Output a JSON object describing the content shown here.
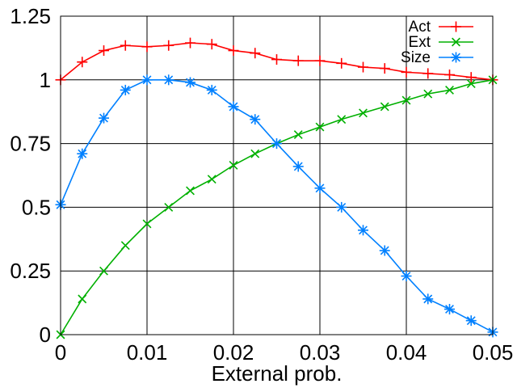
{
  "chart_data": {
    "type": "line",
    "xlabel": "External prob.",
    "ylabel": "",
    "xlim": [
      0,
      0.05
    ],
    "ylim": [
      0,
      1.25
    ],
    "x_ticks": [
      0,
      0.01,
      0.02,
      0.03,
      0.04,
      0.05
    ],
    "x_tick_labels": [
      "0",
      "0.01",
      "0.02",
      "0.03",
      "0.04",
      "0.05"
    ],
    "y_ticks": [
      0,
      0.25,
      0.5,
      0.75,
      1,
      1.25
    ],
    "y_tick_labels": [
      "0",
      "0.25",
      "0.5",
      "0.75",
      "1",
      "1.25"
    ],
    "grid": true,
    "legend_position": "top-right",
    "x": [
      0,
      0.0025,
      0.005,
      0.0075,
      0.01,
      0.0125,
      0.015,
      0.0175,
      0.02,
      0.0225,
      0.025,
      0.0275,
      0.03,
      0.0325,
      0.035,
      0.0375,
      0.04,
      0.0425,
      0.045,
      0.0475,
      0.05
    ],
    "series": [
      {
        "name": "Act",
        "color": "#ff0000",
        "marker": "plus",
        "values": [
          1.0,
          1.07,
          1.115,
          1.135,
          1.13,
          1.135,
          1.145,
          1.14,
          1.115,
          1.105,
          1.08,
          1.075,
          1.075,
          1.065,
          1.05,
          1.045,
          1.03,
          1.025,
          1.02,
          1.01,
          1.0
        ]
      },
      {
        "name": "Ext",
        "color": "#00b000",
        "marker": "cross",
        "values": [
          0.0,
          0.14,
          0.25,
          0.35,
          0.435,
          0.5,
          0.565,
          0.61,
          0.665,
          0.71,
          0.75,
          0.785,
          0.815,
          0.845,
          0.87,
          0.895,
          0.92,
          0.945,
          0.96,
          0.985,
          1.0
        ]
      },
      {
        "name": "Size",
        "color": "#0080ff",
        "marker": "star",
        "values": [
          0.51,
          0.71,
          0.85,
          0.96,
          1.0,
          1.0,
          0.99,
          0.96,
          0.895,
          0.845,
          0.75,
          0.66,
          0.575,
          0.5,
          0.41,
          0.33,
          0.23,
          0.14,
          0.1,
          0.055,
          0.01
        ]
      }
    ]
  }
}
